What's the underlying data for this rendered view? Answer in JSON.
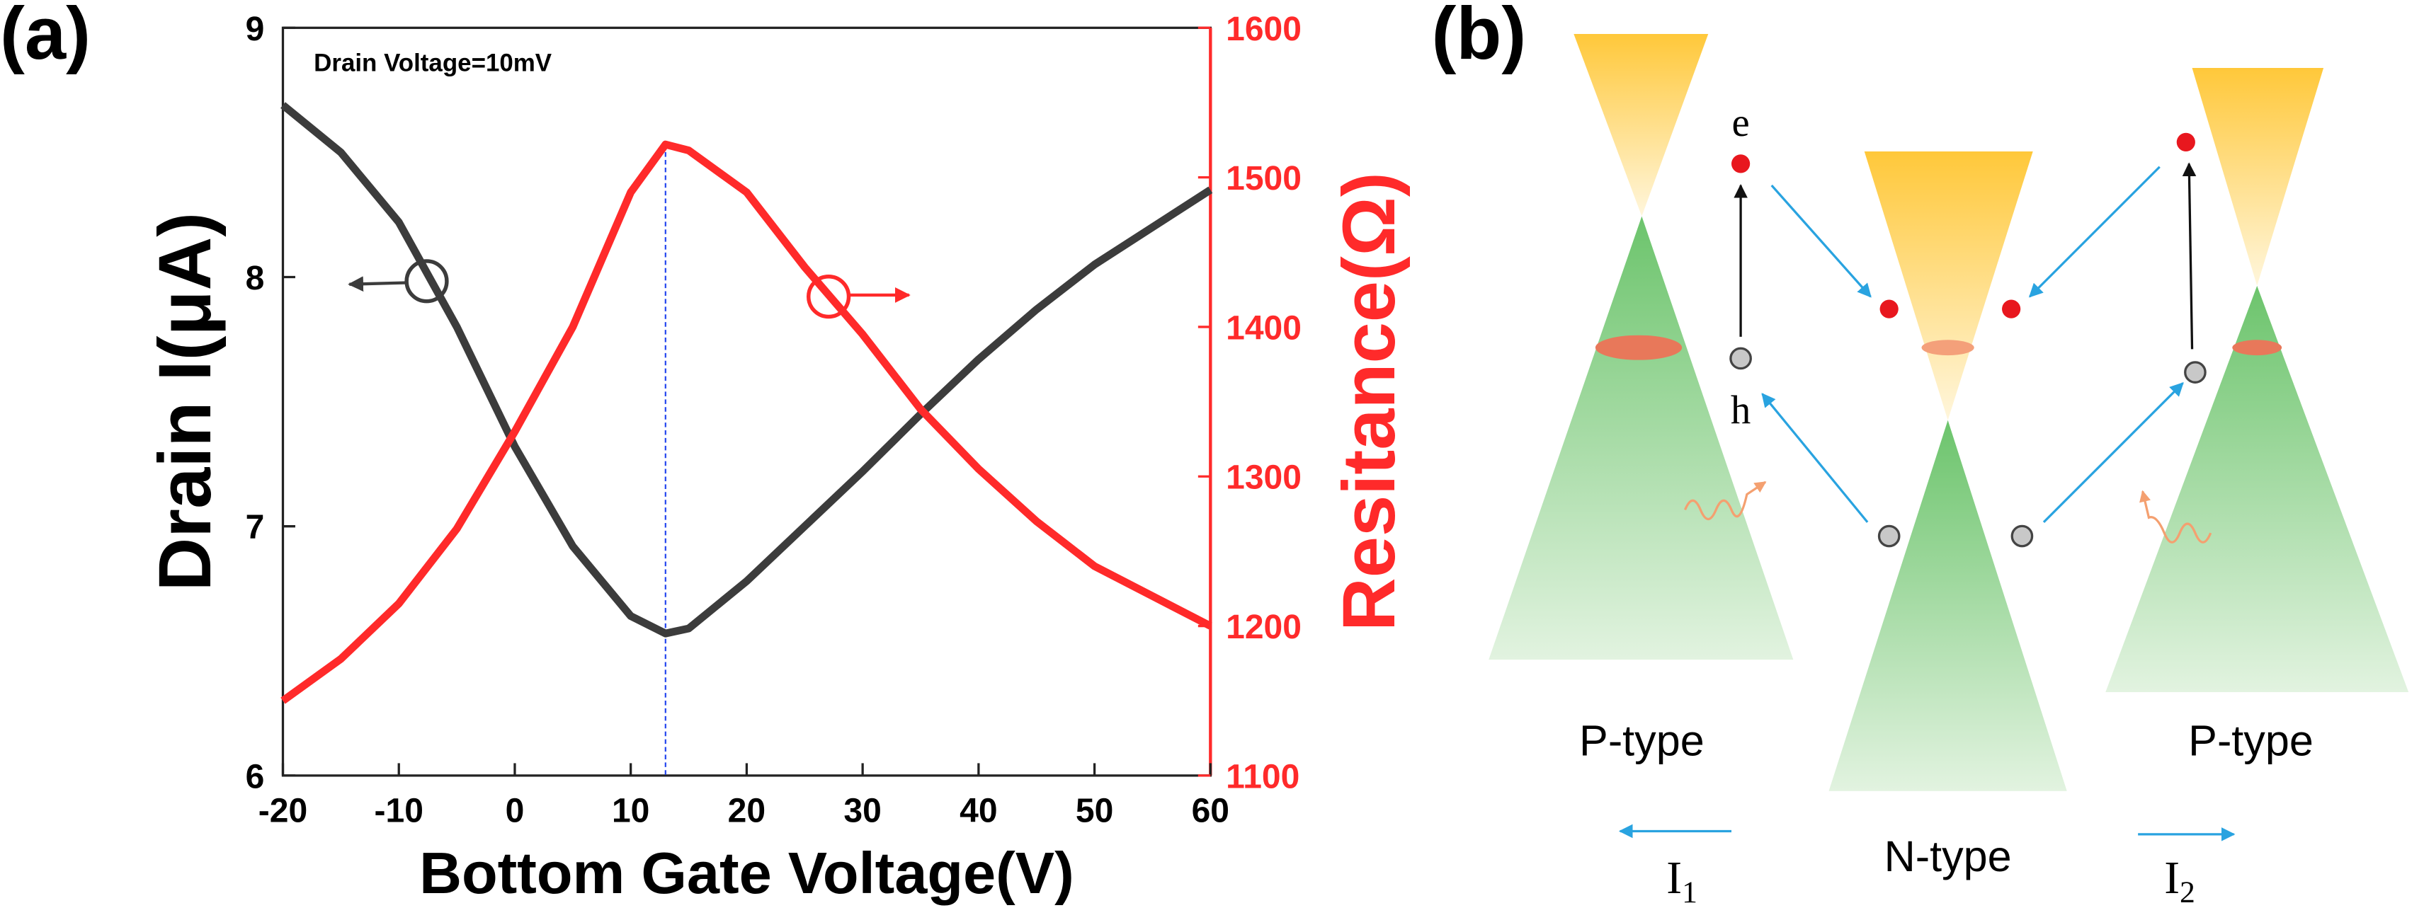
{
  "chart_data": {
    "type": "line",
    "title": "Drain Voltage=10mV",
    "xlabel": "Bottom Gate Voltage(V)",
    "ylabel": "Drain I(μA)",
    "y2label": "Resitance(Ω)",
    "x": [
      -20,
      -15,
      -10,
      -5,
      0,
      5,
      10,
      13,
      15,
      20,
      25,
      30,
      35,
      40,
      45,
      50,
      55,
      60
    ],
    "series": [
      {
        "name": "Drain I",
        "color": "#3c3c3c",
        "axis": "y",
        "values": [
          8.69,
          8.5,
          8.22,
          7.8,
          7.32,
          6.92,
          6.64,
          6.57,
          6.59,
          6.78,
          7.0,
          7.22,
          7.45,
          7.67,
          7.87,
          8.05,
          8.2,
          8.35
        ]
      },
      {
        "name": "Resistance",
        "color": "#ff2a2a",
        "axis": "y2",
        "values": [
          1150,
          1178,
          1215,
          1265,
          1330,
          1400,
          1490,
          1522,
          1518,
          1490,
          1440,
          1395,
          1345,
          1305,
          1270,
          1240,
          1220,
          1200
        ]
      }
    ],
    "xlim": [
      -20,
      60
    ],
    "xticks": [
      -20,
      -10,
      0,
      10,
      20,
      30,
      40,
      50,
      60
    ],
    "ylim": [
      6,
      9
    ],
    "yticks": [
      6,
      7,
      8,
      9
    ],
    "y2lim": [
      1100,
      1600
    ],
    "y2ticks": [
      1100,
      1200,
      1300,
      1400,
      1500,
      1600
    ],
    "vline_x": 13,
    "vline_color": "#2244ee"
  },
  "panel_labels": [
    "(a)",
    "(b)"
  ],
  "diagram": {
    "electron_label": "e",
    "hole_label": "h",
    "regions": [
      "P-type",
      "N-type",
      "P-type"
    ],
    "currents": [
      {
        "symbol": "I",
        "subscript": "1"
      },
      {
        "symbol": "I",
        "subscript": "2"
      }
    ]
  }
}
